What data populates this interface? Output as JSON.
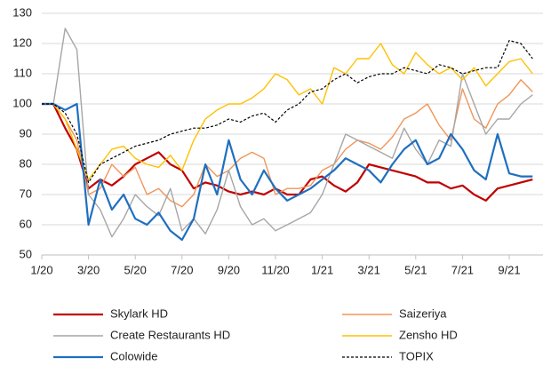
{
  "chart_data": {
    "type": "line",
    "categories": [
      "1/20",
      null,
      null,
      null,
      "3/20",
      null,
      null,
      null,
      "5/20",
      null,
      null,
      null,
      "7/20",
      null,
      null,
      null,
      "9/20",
      null,
      null,
      null,
      "11/20",
      null,
      null,
      null,
      "1/21",
      null,
      null,
      null,
      "3/21",
      null,
      null,
      null,
      "5/21",
      null,
      null,
      null,
      "7/21",
      null,
      null,
      null,
      "9/21",
      null,
      null
    ],
    "ylim": [
      50,
      130
    ],
    "yticks": [
      50,
      60,
      70,
      80,
      90,
      100,
      110,
      120,
      130
    ],
    "grid": true,
    "legend": "bottom",
    "series": [
      {
        "name": "Skylark HD",
        "color": "#c00000",
        "width": 2.2,
        "dashed": false,
        "values": [
          100,
          100,
          92,
          85,
          72,
          75,
          73,
          76,
          80,
          82,
          84,
          80,
          78,
          72,
          74,
          73,
          71,
          70,
          71,
          70,
          72,
          70,
          70,
          75,
          76,
          73,
          71,
          74,
          80,
          79,
          78,
          77,
          76,
          74,
          74,
          72,
          73,
          70,
          68,
          72,
          73,
          74,
          75
        ]
      },
      {
        "name": "Saizeriya",
        "color": "#f0955a",
        "width": 1.4,
        "dashed": false,
        "values": [
          100,
          100,
          95,
          88,
          70,
          72,
          80,
          76,
          79,
          70,
          72,
          68,
          66,
          70,
          80,
          76,
          78,
          82,
          84,
          82,
          70,
          72,
          72,
          73,
          78,
          80,
          85,
          88,
          87,
          85,
          89,
          95,
          97,
          100,
          93,
          88,
          105,
          95,
          92,
          100,
          103,
          108,
          104
        ]
      },
      {
        "name": "Create Restaurants HD",
        "color": "#a6a6a6",
        "width": 1.4,
        "dashed": false,
        "values": [
          100,
          100,
          125,
          118,
          70,
          65,
          56,
          62,
          70,
          66,
          63,
          72,
          58,
          62,
          57,
          65,
          78,
          66,
          60,
          62,
          58,
          60,
          62,
          64,
          70,
          80,
          90,
          88,
          86,
          84,
          82,
          92,
          85,
          80,
          88,
          86,
          110,
          100,
          90,
          95,
          95,
          100,
          103
        ]
      },
      {
        "name": "Zensho HD",
        "color": "#ffc000",
        "width": 1.4,
        "dashed": false,
        "values": [
          100,
          100,
          95,
          85,
          75,
          80,
          85,
          86,
          82,
          80,
          79,
          83,
          78,
          88,
          95,
          98,
          100,
          100,
          102,
          105,
          110,
          108,
          103,
          105,
          100,
          112,
          110,
          115,
          115,
          120,
          113,
          110,
          117,
          113,
          110,
          112,
          108,
          112,
          106,
          110,
          114,
          115,
          110
        ]
      },
      {
        "name": "Colowide",
        "color": "#1f6fc0",
        "width": 2.2,
        "dashed": false,
        "values": [
          100,
          100,
          98,
          100,
          60,
          75,
          65,
          70,
          62,
          60,
          64,
          58,
          55,
          62,
          80,
          70,
          88,
          75,
          70,
          78,
          72,
          68,
          70,
          72,
          75,
          78,
          82,
          80,
          78,
          74,
          80,
          85,
          88,
          80,
          82,
          90,
          85,
          78,
          75,
          90,
          77,
          76,
          76
        ]
      },
      {
        "name": "TOPIX",
        "color": "#000000",
        "width": 1.2,
        "dashed": true,
        "values": [
          100,
          100,
          97,
          90,
          74,
          80,
          82,
          84,
          86,
          87,
          88,
          90,
          91,
          92,
          92,
          93,
          95,
          94,
          96,
          97,
          94,
          98,
          100,
          104,
          105,
          108,
          110,
          107,
          109,
          110,
          110,
          112,
          111,
          110,
          113,
          112,
          110,
          111,
          112,
          112,
          121,
          120,
          115
        ]
      }
    ]
  }
}
